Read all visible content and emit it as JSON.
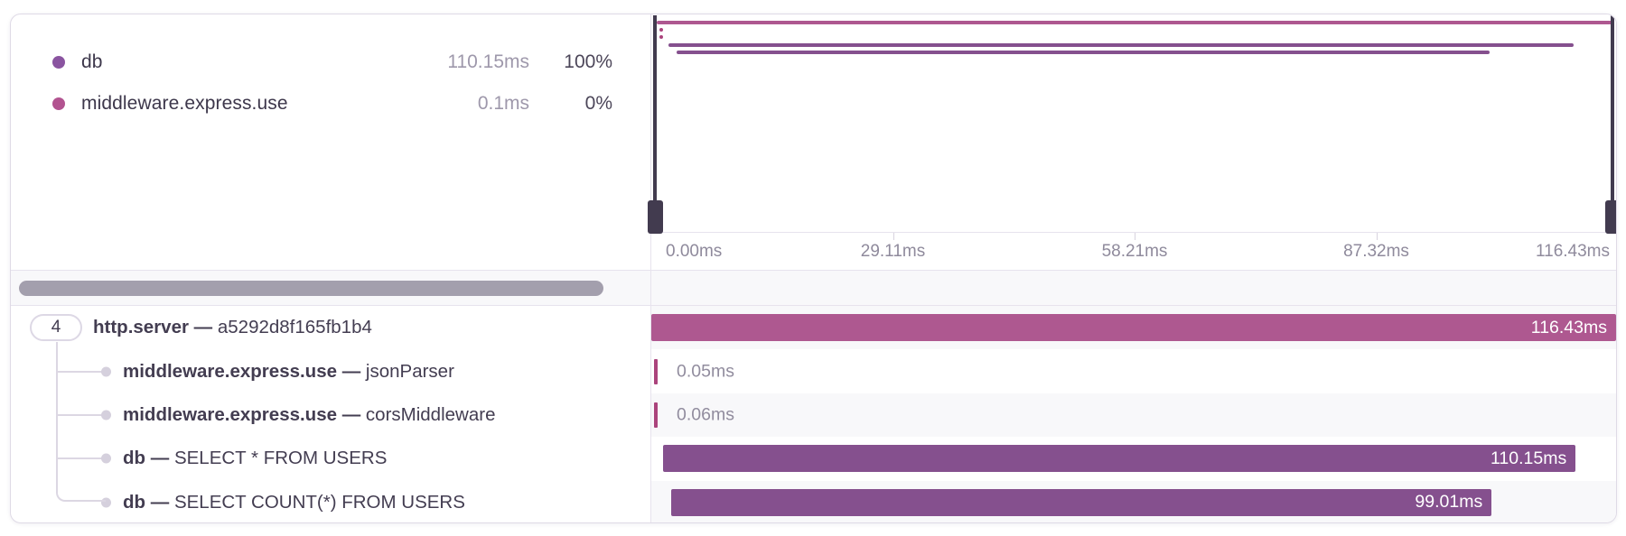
{
  "legend": {
    "items": [
      {
        "name": "db",
        "duration": "110.15ms",
        "percent": "100%",
        "color": "#8a54a0"
      },
      {
        "name": "middleware.express.use",
        "duration": "0.1ms",
        "percent": "0%",
        "color": "#b25390"
      }
    ]
  },
  "minimap": {
    "brush_color": "#423b4f",
    "axis_tick_labels": [
      "0.00ms",
      "29.11ms",
      "58.21ms",
      "87.32ms",
      "116.43ms"
    ]
  },
  "chart_data": {
    "type": "gantt-trace",
    "title": "",
    "total_ms": 116.43,
    "axis_ticks_ms": [
      0.0,
      29.11,
      58.21,
      87.32,
      116.43
    ],
    "legend_position": "top-left",
    "spans": [
      {
        "badge": "4",
        "name": "http.server",
        "separator": "—",
        "operation": "a5292d8f165fb1b4",
        "start_ms": 0,
        "duration_ms": 116.43,
        "duration_label": "116.43ms",
        "color": "#ae5890",
        "render": "bar"
      },
      {
        "name": "middleware.express.use",
        "separator": "—",
        "operation": "jsonParser",
        "start_ms": 0.3,
        "duration_ms": 0.05,
        "duration_label": "0.05ms",
        "color": "#ab437c",
        "render": "tick"
      },
      {
        "name": "middleware.express.use",
        "separator": "—",
        "operation": "corsMiddleware",
        "start_ms": 0.35,
        "duration_ms": 0.06,
        "duration_label": "0.06ms",
        "color": "#ab437c",
        "render": "tick"
      },
      {
        "name": "db",
        "separator": "—",
        "operation": "SELECT * FROM USERS",
        "start_ms": 1.4,
        "duration_ms": 110.15,
        "duration_label": "110.15ms",
        "color": "#85508e",
        "render": "bar"
      },
      {
        "name": "db",
        "separator": "—",
        "operation": "SELECT COUNT(*) FROM USERS",
        "start_ms": 2.4,
        "duration_ms": 99.01,
        "duration_label": "99.01ms",
        "color": "#85508e",
        "render": "bar"
      }
    ]
  },
  "scrollbar": {
    "color": "#a39fad"
  }
}
